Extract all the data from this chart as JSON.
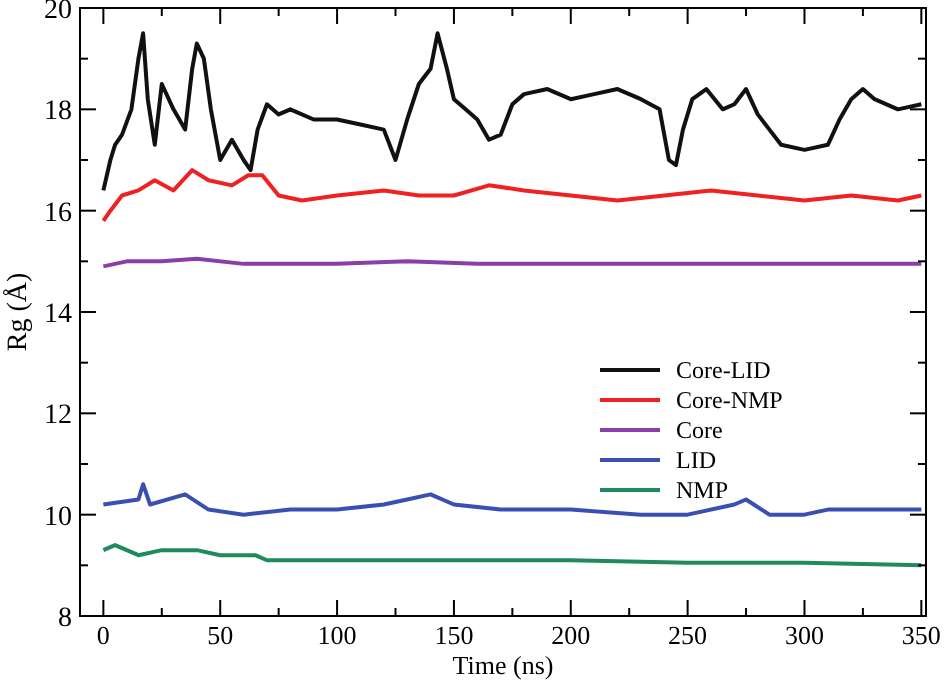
{
  "chart_data": {
    "type": "line",
    "xlabel": "Time (ns)",
    "ylabel": "Rg (Å)",
    "xlim": [
      -10,
      352
    ],
    "ylim": [
      8,
      20
    ],
    "xticks": [
      0,
      {
        "value": 25,
        "label": null
      },
      50,
      {
        "value": 75,
        "label": null
      },
      100,
      {
        "value": 125,
        "label": null
      },
      150,
      {
        "value": 175,
        "label": null
      },
      200,
      {
        "value": 225,
        "label": null
      },
      250,
      {
        "value": 275,
        "label": null
      },
      300,
      {
        "value": 325,
        "label": null
      },
      350
    ],
    "yticks": [
      8,
      {
        "value": 9,
        "label": null
      },
      10,
      {
        "value": 11,
        "label": null
      },
      12,
      {
        "value": 13,
        "label": null
      },
      14,
      {
        "value": 15,
        "label": null
      },
      16,
      {
        "value": 17,
        "label": null
      },
      18,
      {
        "value": 19,
        "label": null
      },
      20
    ],
    "grid": false,
    "legend": "right",
    "line_style": "solid",
    "series": [
      {
        "name": "Core-LID",
        "color": "#111111",
        "x": [
          0,
          3,
          5,
          8,
          12,
          15,
          17,
          19,
          22,
          25,
          30,
          35,
          38,
          40,
          43,
          46,
          50,
          55,
          60,
          63,
          66,
          70,
          75,
          80,
          90,
          100,
          110,
          120,
          125,
          130,
          135,
          140,
          143,
          147,
          150,
          155,
          160,
          165,
          170,
          175,
          180,
          190,
          200,
          210,
          220,
          230,
          238,
          242,
          245,
          248,
          252,
          258,
          265,
          270,
          275,
          280,
          285,
          290,
          300,
          310,
          315,
          320,
          325,
          330,
          340,
          350
        ],
        "values": [
          16.4,
          17.0,
          17.3,
          17.5,
          18.0,
          19.0,
          19.5,
          18.2,
          17.3,
          18.5,
          18.0,
          17.6,
          18.8,
          19.3,
          19.0,
          18.0,
          17.0,
          17.4,
          17.0,
          16.8,
          17.6,
          18.1,
          17.9,
          18.0,
          17.8,
          17.8,
          17.7,
          17.6,
          17.0,
          17.8,
          18.5,
          18.8,
          19.5,
          18.8,
          18.2,
          18.0,
          17.8,
          17.4,
          17.5,
          18.1,
          18.3,
          18.4,
          18.2,
          18.3,
          18.4,
          18.2,
          18.0,
          17.0,
          16.9,
          17.6,
          18.2,
          18.4,
          18.0,
          18.1,
          18.4,
          17.9,
          17.6,
          17.3,
          17.2,
          17.3,
          17.8,
          18.2,
          18.4,
          18.2,
          18.0,
          18.1
        ]
      },
      {
        "name": "Core-NMP",
        "color": "#ee2222",
        "x": [
          0,
          3,
          8,
          15,
          22,
          30,
          38,
          45,
          55,
          62,
          68,
          75,
          85,
          100,
          120,
          135,
          150,
          165,
          180,
          200,
          220,
          240,
          260,
          280,
          300,
          320,
          340,
          350
        ],
        "values": [
          15.8,
          16.0,
          16.3,
          16.4,
          16.6,
          16.4,
          16.8,
          16.6,
          16.5,
          16.7,
          16.7,
          16.3,
          16.2,
          16.3,
          16.4,
          16.3,
          16.3,
          16.5,
          16.4,
          16.3,
          16.2,
          16.3,
          16.4,
          16.3,
          16.2,
          16.3,
          16.2,
          16.3
        ]
      },
      {
        "name": "Core",
        "color": "#8a3fa6",
        "x": [
          0,
          10,
          25,
          40,
          60,
          80,
          100,
          130,
          160,
          200,
          240,
          280,
          320,
          350
        ],
        "values": [
          14.9,
          15.0,
          15.0,
          15.05,
          14.95,
          14.95,
          14.95,
          15.0,
          14.95,
          14.95,
          14.95,
          14.95,
          14.95,
          14.95
        ]
      },
      {
        "name": "LID",
        "color": "#3a4fb2",
        "x": [
          0,
          15,
          17,
          20,
          35,
          45,
          60,
          80,
          100,
          120,
          130,
          140,
          150,
          170,
          200,
          230,
          250,
          270,
          275,
          285,
          300,
          310,
          330,
          350
        ],
        "values": [
          10.2,
          10.3,
          10.6,
          10.2,
          10.4,
          10.1,
          10.0,
          10.1,
          10.1,
          10.2,
          10.3,
          10.4,
          10.2,
          10.1,
          10.1,
          10.0,
          10.0,
          10.2,
          10.3,
          10.0,
          10.0,
          10.1,
          10.1,
          10.1
        ]
      },
      {
        "name": "NMP",
        "color": "#1f8a5c",
        "x": [
          0,
          5,
          15,
          25,
          40,
          50,
          65,
          70,
          100,
          150,
          200,
          250,
          300,
          350
        ],
        "values": [
          9.3,
          9.4,
          9.2,
          9.3,
          9.3,
          9.2,
          9.2,
          9.1,
          9.1,
          9.1,
          9.1,
          9.05,
          9.05,
          9.0
        ]
      }
    ]
  }
}
